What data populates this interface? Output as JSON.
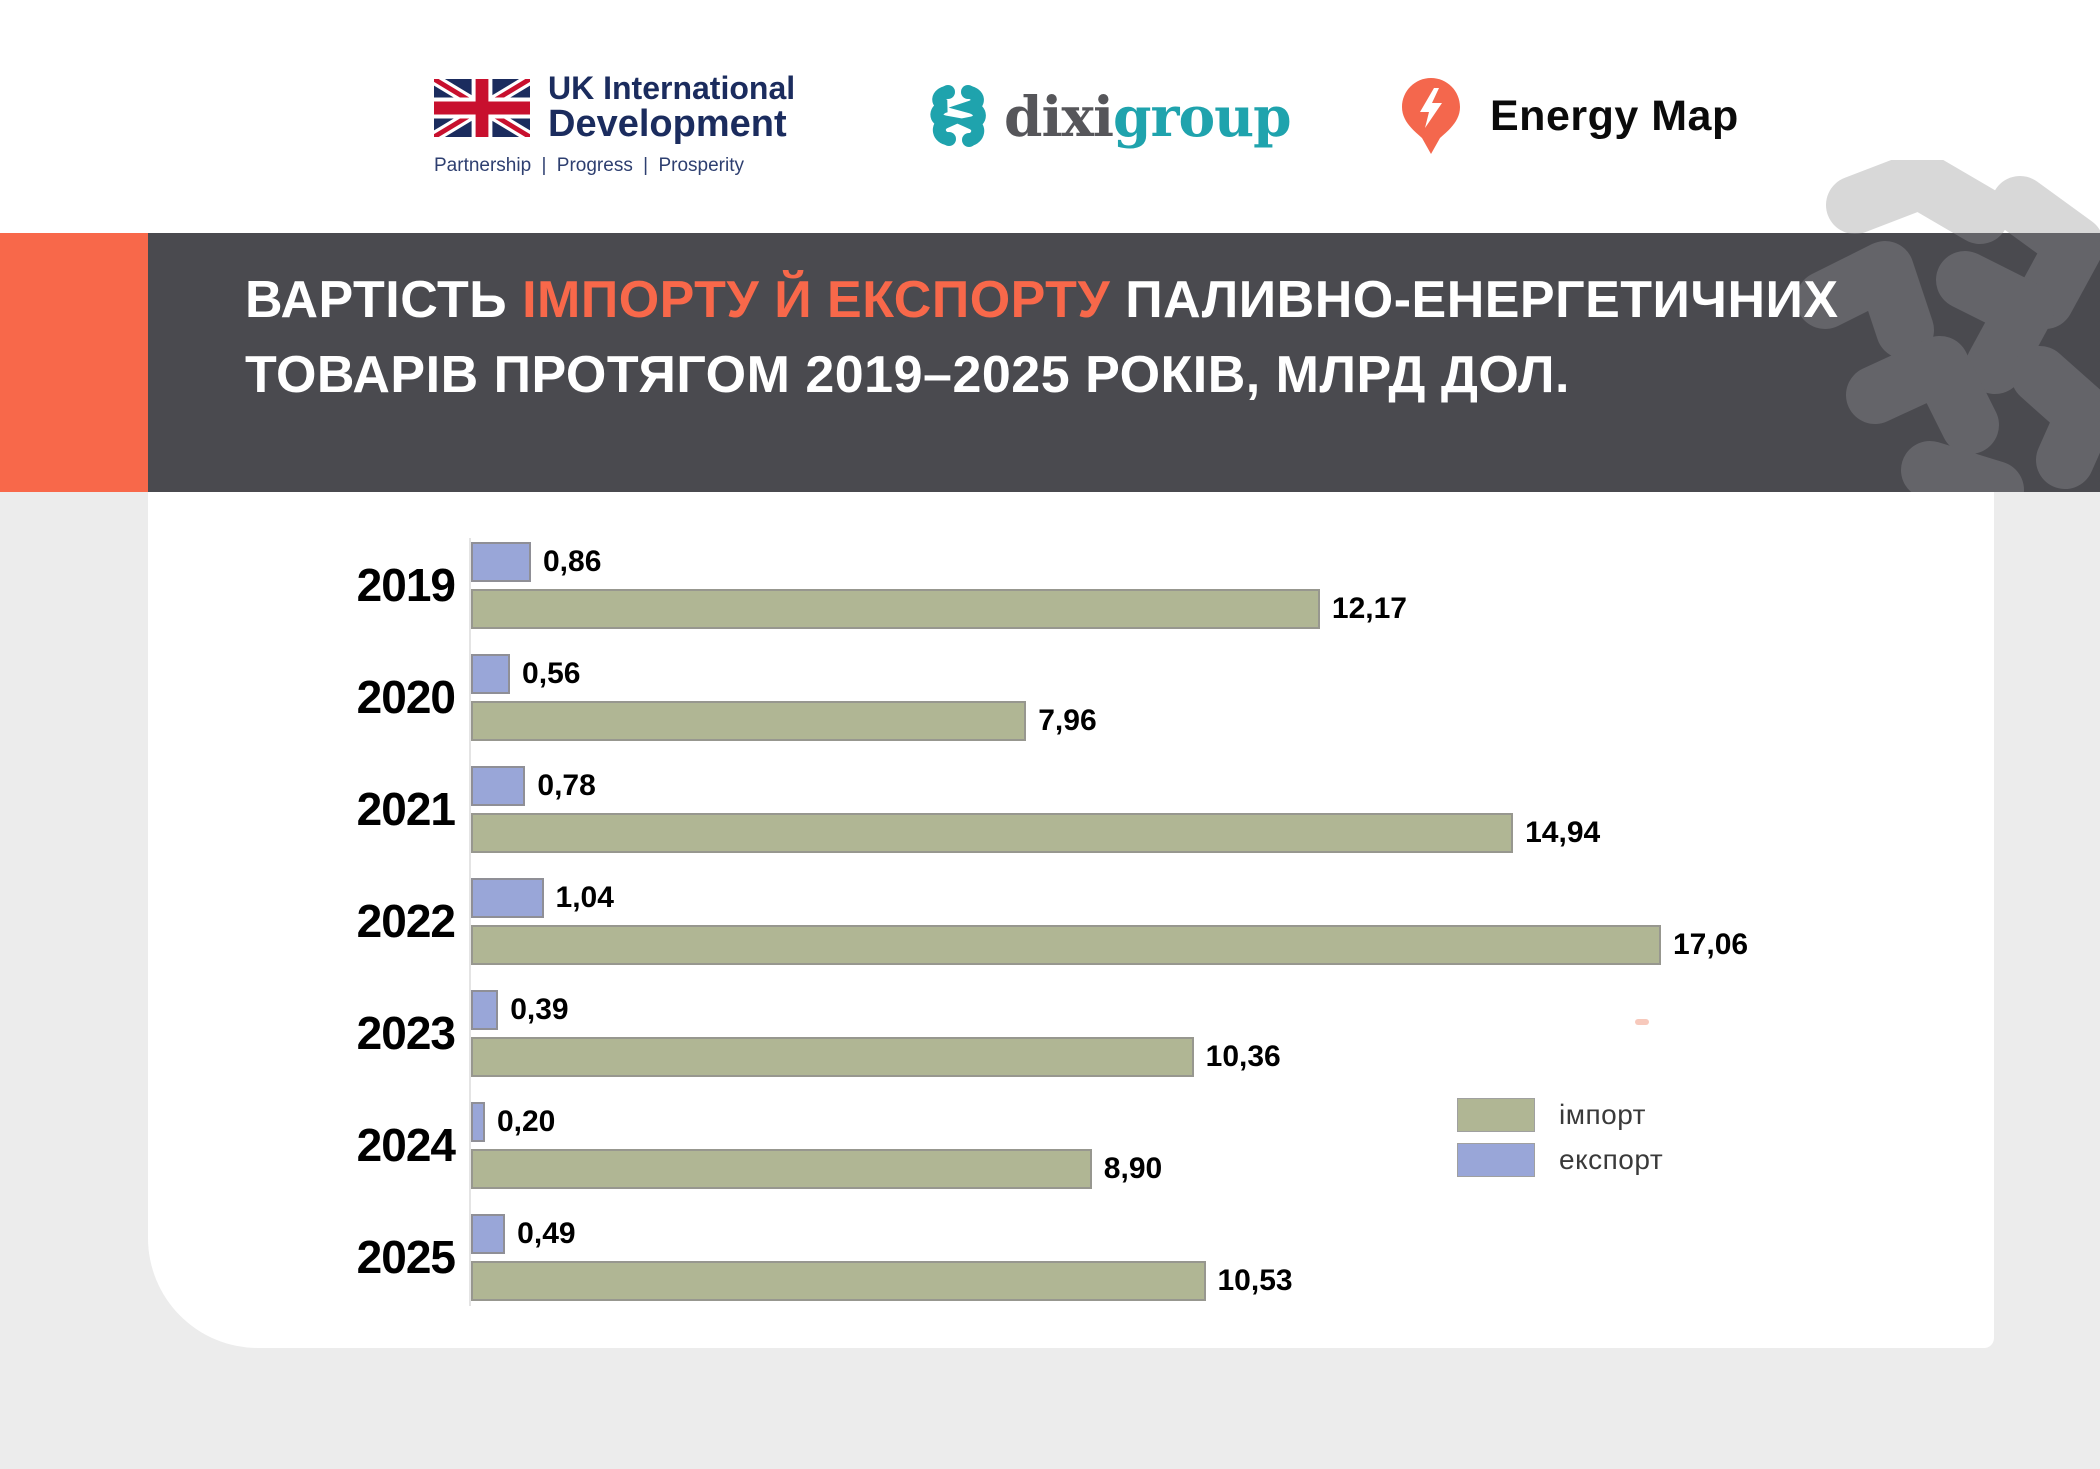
{
  "header": {
    "uk_logo": {
      "line1": "UK International",
      "line2": "Development",
      "tagline": [
        "Partnership",
        "Progress",
        "Prosperity"
      ],
      "separator": "|"
    },
    "dixigroup_logo": {
      "part1": "dixi",
      "part2": "group"
    },
    "energy_map_logo": {
      "label": "Energy Map"
    }
  },
  "banner": {
    "title_line1_prefix": "ВАРТІСТЬ ",
    "title_line1_accent": "ІМПОРТУ Й ЕКСПОРТУ",
    "title_line1_suffix": " ПАЛИВНО-ЕНЕРГЕТИЧНИХ",
    "title_line2": "ТОВАРІВ ПРОТЯГОМ 2019–2025 РОКІВ, МЛРД ДОЛ."
  },
  "colors": {
    "accent_orange": "#f8684a",
    "banner_gray": "#4a4a4f",
    "page_background": "#ececec",
    "import_green": "#b0b694",
    "export_blue": "#99a6d8",
    "uk_navy": "#1b2c5e",
    "dixi_teal": "#1fa3ad"
  },
  "chart_data": {
    "type": "bar",
    "orientation": "horizontal",
    "title": "ВАРТІСТЬ ІМПОРТУ Й ЕКСПОРТУ ПАЛИВНО-ЕНЕРГЕТИЧНИХ ТОВАРІВ ПРОТЯГОМ 2019–2025 РОКІВ, МЛРД ДОЛ.",
    "unit": "млрд дол.",
    "categories": [
      "2019",
      "2020",
      "2021",
      "2022",
      "2023",
      "2024",
      "2025"
    ],
    "series": [
      {
        "name": "імпорт",
        "color": "#b0b694",
        "values": [
          12.17,
          7.96,
          14.94,
          17.06,
          10.36,
          8.9,
          10.53
        ],
        "labels": [
          "12,17",
          "7,96",
          "14,94",
          "17,06",
          "10,36",
          "8,90",
          "10,53"
        ]
      },
      {
        "name": "експорт",
        "color": "#99a6d8",
        "values": [
          0.86,
          0.56,
          0.78,
          1.04,
          0.39,
          0.2,
          0.49
        ],
        "labels": [
          "0,86",
          "0,56",
          "0,78",
          "1,04",
          "0,39",
          "0,20",
          "0,49"
        ]
      }
    ],
    "xlim": [
      0,
      17.06
    ],
    "grid": false,
    "legend_position": "right-middle",
    "value_labels": "at bar ends, comma decimals"
  }
}
